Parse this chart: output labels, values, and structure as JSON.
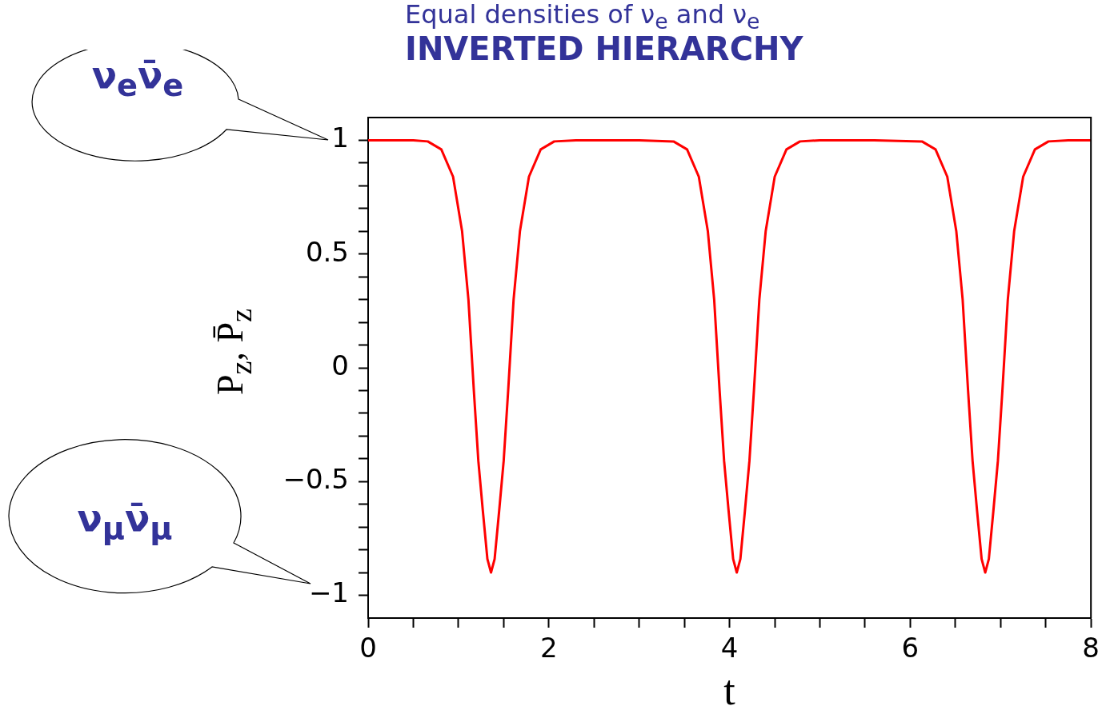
{
  "chart_data": {
    "type": "line",
    "title": "Equal densities of ν$_{e}$ and ν$_{e}$",
    "subtitle": "INVERTED HIERARCHY",
    "xlabel": "t",
    "ylabel": "P$_{z}$,  P̄$_{z}$",
    "annotations": [
      "ν$_{e}$ν̄$_{e}$",
      "ν$_{μ}$ν̄$_{μ}$"
    ],
    "x": [
      0,
      0.5,
      0.66,
      0.81,
      0.94,
      1.04,
      1.11,
      1.17,
      1.22,
      1.27,
      1.32,
      1.36,
      1.4,
      1.45,
      1.5,
      1.55,
      1.61,
      1.68,
      1.78,
      1.91,
      2.06,
      2.3,
      3.0,
      3.38,
      3.53,
      3.66,
      3.76,
      3.83,
      3.89,
      3.94,
      3.99,
      4.04,
      4.08,
      4.12,
      4.17,
      4.22,
      4.27,
      4.33,
      4.4,
      4.5,
      4.63,
      4.78,
      5.0,
      5.6,
      6.13,
      6.28,
      6.41,
      6.51,
      6.58,
      6.64,
      6.69,
      6.74,
      6.79,
      6.83,
      6.87,
      6.92,
      6.97,
      7.02,
      7.08,
      7.15,
      7.25,
      7.38,
      7.53,
      7.75,
      8
    ],
    "series": [
      {
        "color": "#ff0000",
        "values": [
          1,
          1,
          0.995,
          0.96,
          0.84,
          0.6,
          0.3,
          -0.1,
          -0.41,
          -0.63,
          -0.84,
          -0.9,
          -0.84,
          -0.63,
          -0.41,
          -0.1,
          0.3,
          0.6,
          0.84,
          0.96,
          0.995,
          1,
          1,
          0.995,
          0.96,
          0.84,
          0.6,
          0.3,
          -0.1,
          -0.41,
          -0.63,
          -0.84,
          -0.9,
          -0.84,
          -0.63,
          -0.41,
          -0.1,
          0.3,
          0.6,
          0.84,
          0.96,
          0.995,
          1,
          1,
          0.995,
          0.96,
          0.84,
          0.6,
          0.3,
          -0.1,
          -0.41,
          -0.63,
          -0.84,
          -0.9,
          -0.84,
          -0.63,
          -0.41,
          -0.1,
          0.3,
          0.6,
          0.84,
          0.96,
          0.995,
          1,
          1
        ]
      }
    ],
    "xlim": [
      0,
      8
    ],
    "xticks": [
      0,
      {
        "value": 0.5,
        "label": null
      },
      {
        "value": 1,
        "label": null
      },
      {
        "value": 1.5,
        "label": null
      },
      2,
      {
        "value": 2.5,
        "label": null
      },
      {
        "value": 3,
        "label": null
      },
      {
        "value": 3.5,
        "label": null
      },
      4,
      {
        "value": 4.5,
        "label": null
      },
      {
        "value": 5,
        "label": null
      },
      {
        "value": 5.5,
        "label": null
      },
      6,
      {
        "value": 6.5,
        "label": null
      },
      {
        "value": 7,
        "label": null
      },
      {
        "value": 7.5,
        "label": null
      },
      8
    ],
    "ylim": [
      -1.1,
      1.1
    ],
    "yticks": [
      {
        "value": -1,
        "label": "−1"
      },
      {
        "value": -0.9,
        "label": null
      },
      {
        "value": -0.8,
        "label": null
      },
      {
        "value": -0.7,
        "label": null
      },
      {
        "value": -0.6,
        "label": null
      },
      {
        "value": -0.5,
        "label": "−0.5"
      },
      {
        "value": -0.4,
        "label": null
      },
      {
        "value": -0.3,
        "label": null
      },
      {
        "value": -0.2,
        "label": null
      },
      {
        "value": -0.1,
        "label": null
      },
      0,
      {
        "value": 0.1,
        "label": null
      },
      {
        "value": 0.2,
        "label": null
      },
      {
        "value": 0.3,
        "label": null
      },
      {
        "value": 0.4,
        "label": null
      },
      0.5,
      {
        "value": 0.6,
        "label": null
      },
      {
        "value": 0.7,
        "label": null
      },
      {
        "value": 0.8,
        "label": null
      },
      {
        "value": 0.9,
        "label": null
      },
      1
    ],
    "grid": false,
    "legend": false,
    "marker": "none",
    "line_style": "solid"
  }
}
